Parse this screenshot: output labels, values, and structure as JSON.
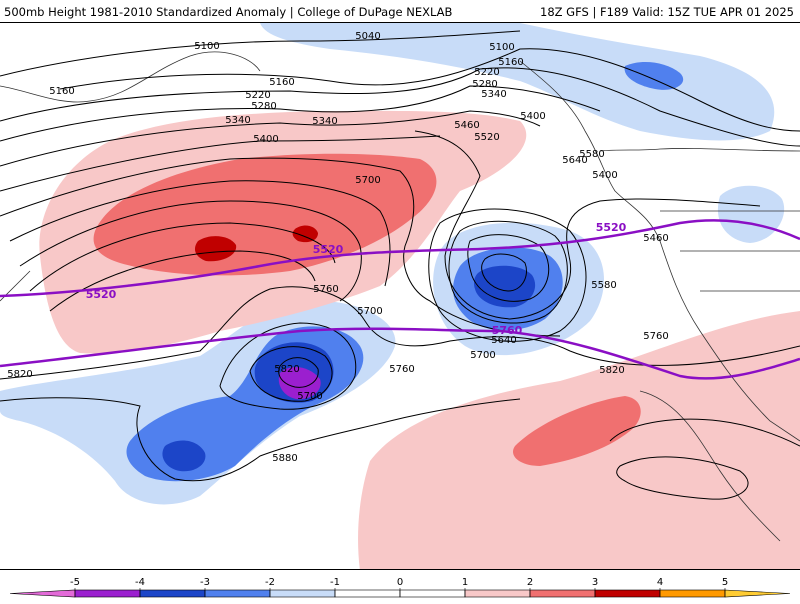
{
  "header": {
    "title": "500mb Height 1981-2010 Standardized Anomaly | College of DuPage NEXLAB",
    "run_info": "18Z GFS | F189 Valid: 15Z TUE APR 01 2025"
  },
  "map": {
    "height_contours": {
      "labels": [
        "5040",
        "5100",
        "5100",
        "5160",
        "5160",
        "5160",
        "5220",
        "5220",
        "5280",
        "5280",
        "5340",
        "5340",
        "5340",
        "5400",
        "5400",
        "5400",
        "5460",
        "5460",
        "5520",
        "5580",
        "5580",
        "5640",
        "5640",
        "5700",
        "5700",
        "5700",
        "5700",
        "5760",
        "5760",
        "5760",
        "5820",
        "5820",
        "5820",
        "5880"
      ]
    },
    "climo_contours": {
      "color": "#8a0fc4",
      "labels": [
        "5520",
        "5520",
        "5520",
        "5760"
      ]
    },
    "anomaly_colors": {
      "neg5": "#e36ad8",
      "neg4": "#9b1fcf",
      "neg3": "#1c45c8",
      "neg2": "#5080ee",
      "neg1": "#c8dcf8",
      "pos1": "#f8c8c8",
      "pos2": "#f07070",
      "pos3": "#c00000",
      "pos4": "#ff9900",
      "pos5": "#ffcc33"
    }
  },
  "colorbar": {
    "ticks": [
      "-5",
      "-4",
      "-3",
      "-2",
      "-1",
      "0",
      "1",
      "2",
      "3",
      "4",
      "5"
    ]
  }
}
